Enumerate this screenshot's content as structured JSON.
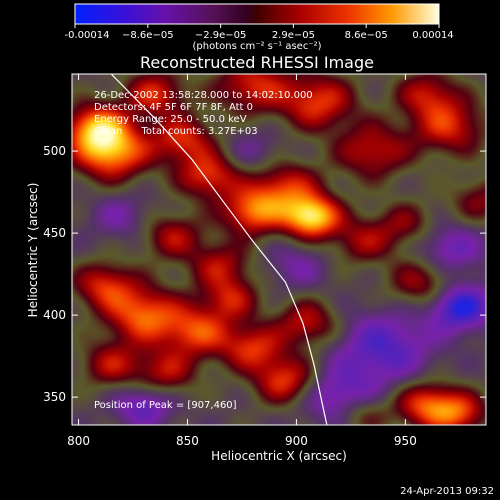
{
  "colorbar": {
    "tick_labels": [
      "-0.00014",
      "−8.6e−05",
      "−2.9e−05",
      "2.9e−05",
      "8.6e−05",
      "0.00014"
    ],
    "unit_label": "(photons cm⁻² s⁻¹ asec⁻²)",
    "range": [
      -0.00014,
      0.00014
    ]
  },
  "chart_data": {
    "type": "heatmap",
    "title": "Reconstructed RHESSI Image",
    "xlabel": "Heliocentric X (arcsec)",
    "ylabel": "Heliocentric Y (arcsec)",
    "xlim": [
      797,
      987
    ],
    "ylim": [
      333,
      547
    ],
    "x_ticks": [
      800,
      850,
      900,
      950
    ],
    "y_ticks": [
      350,
      400,
      450,
      500
    ],
    "info_lines": [
      "26-Dec-2002 13:58:28.000 to 14:02:10.000",
      "Detectors: 4F 5F 6F 7F 8F, Att 0",
      "Energy Range: 25.0 - 50.0 keV",
      "Clean      Total counts: 3.27E+03"
    ],
    "peak_text": "Position of Peak = [907,460]",
    "peak": [
      907,
      460
    ],
    "total_counts": 3270,
    "energy_range_kev": [
      25.0,
      50.0
    ],
    "limb": [
      [
        815,
        547
      ],
      [
        835,
        520
      ],
      [
        852,
        495
      ],
      [
        866,
        470
      ],
      [
        880,
        445
      ],
      [
        895,
        420
      ],
      [
        903,
        395
      ],
      [
        908,
        370
      ],
      [
        912,
        345
      ],
      [
        914,
        333
      ]
    ],
    "sources": [
      {
        "x": 907,
        "y": 460,
        "amp": 1.0,
        "s": 9
      },
      {
        "x": 880,
        "y": 463,
        "amp": 0.7,
        "s": 10
      },
      {
        "x": 895,
        "y": 478,
        "amp": 0.55,
        "s": 11
      },
      {
        "x": 860,
        "y": 485,
        "amp": 0.6,
        "s": 10
      },
      {
        "x": 848,
        "y": 507,
        "amp": 0.55,
        "s": 10
      },
      {
        "x": 815,
        "y": 500,
        "amp": 0.85,
        "s": 12
      },
      {
        "x": 808,
        "y": 515,
        "amp": 0.7,
        "s": 10
      },
      {
        "x": 835,
        "y": 535,
        "amp": 0.55,
        "s": 10
      },
      {
        "x": 880,
        "y": 540,
        "amp": 0.55,
        "s": 12
      },
      {
        "x": 910,
        "y": 530,
        "amp": 0.6,
        "s": 12
      },
      {
        "x": 935,
        "y": 500,
        "amp": 0.5,
        "s": 12
      },
      {
        "x": 970,
        "y": 515,
        "amp": 0.55,
        "s": 12
      },
      {
        "x": 960,
        "y": 535,
        "amp": 0.45,
        "s": 10
      },
      {
        "x": 865,
        "y": 430,
        "amp": 0.45,
        "s": 10
      },
      {
        "x": 843,
        "y": 448,
        "amp": 0.45,
        "s": 10
      },
      {
        "x": 930,
        "y": 445,
        "amp": 0.4,
        "s": 10
      },
      {
        "x": 950,
        "y": 455,
        "amp": 0.35,
        "s": 10
      },
      {
        "x": 958,
        "y": 420,
        "amp": 0.45,
        "s": 11
      },
      {
        "x": 830,
        "y": 400,
        "amp": 0.7,
        "s": 12
      },
      {
        "x": 855,
        "y": 390,
        "amp": 0.6,
        "s": 11
      },
      {
        "x": 812,
        "y": 418,
        "amp": 0.55,
        "s": 10
      },
      {
        "x": 880,
        "y": 380,
        "amp": 0.55,
        "s": 10
      },
      {
        "x": 895,
        "y": 360,
        "amp": 0.6,
        "s": 10
      },
      {
        "x": 905,
        "y": 395,
        "amp": 0.5,
        "s": 10
      },
      {
        "x": 870,
        "y": 410,
        "amp": 0.45,
        "s": 9
      },
      {
        "x": 840,
        "y": 365,
        "amp": 0.45,
        "s": 10
      },
      {
        "x": 815,
        "y": 370,
        "amp": 0.45,
        "s": 10
      },
      {
        "x": 960,
        "y": 345,
        "amp": 0.65,
        "s": 10
      },
      {
        "x": 975,
        "y": 340,
        "amp": 0.55,
        "s": 9
      },
      {
        "x": 930,
        "y": 340,
        "amp": 0.35,
        "s": 9
      },
      {
        "x": 985,
        "y": 470,
        "amp": 0.35,
        "s": 10
      },
      {
        "x": 940,
        "y": 380,
        "amp": -0.5,
        "s": 15
      },
      {
        "x": 975,
        "y": 405,
        "amp": -0.7,
        "s": 10
      },
      {
        "x": 920,
        "y": 350,
        "amp": -0.45,
        "s": 12
      },
      {
        "x": 830,
        "y": 345,
        "amp": -0.45,
        "s": 9
      },
      {
        "x": 970,
        "y": 440,
        "amp": -0.4,
        "s": 11
      },
      {
        "x": 900,
        "y": 430,
        "amp": -0.25,
        "s": 10
      },
      {
        "x": 820,
        "y": 460,
        "amp": -0.25,
        "s": 10
      },
      {
        "x": 880,
        "y": 500,
        "amp": -0.2,
        "s": 10
      }
    ],
    "colormap": {
      "negative": [
        "#0033ff",
        "#2222dd",
        "#5522bb",
        "#7722aa",
        "#553366"
      ],
      "zero": "#5a5a2a",
      "positive": [
        "#550011",
        "#aa0000",
        "#ee3300",
        "#ff8800",
        "#ffdd22",
        "#ffffcc"
      ]
    }
  },
  "footer": {
    "timestamp": "24-Apr-2013 09:32"
  }
}
